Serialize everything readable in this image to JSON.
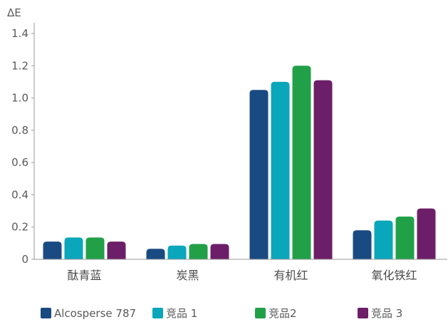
{
  "chart_data": {
    "type": "bar",
    "ylabel": "ΔE",
    "ylim": [
      0,
      1.4
    ],
    "yticks": [
      "0",
      "0.2",
      "0.4",
      "0.6",
      "0.8",
      "1.0",
      "1.2",
      "1.4"
    ],
    "grid": false,
    "legend_position": "bottom",
    "categories": [
      "酞青蓝",
      "炭黑",
      "有机红",
      "氧化铁红"
    ],
    "series": [
      {
        "name": "Alcosperse 787",
        "color": "#1a4a82",
        "values": [
          0.11,
          0.065,
          1.05,
          0.18
        ]
      },
      {
        "name": "竞品 1",
        "color": "#0aa6bb",
        "values": [
          0.135,
          0.085,
          1.1,
          0.24
        ]
      },
      {
        "name": "竞品2",
        "color": "#22a048",
        "values": [
          0.135,
          0.095,
          1.2,
          0.265
        ]
      },
      {
        "name": "竞品 3",
        "color": "#6c1f68",
        "values": [
          0.11,
          0.095,
          1.11,
          0.315
        ]
      }
    ]
  }
}
